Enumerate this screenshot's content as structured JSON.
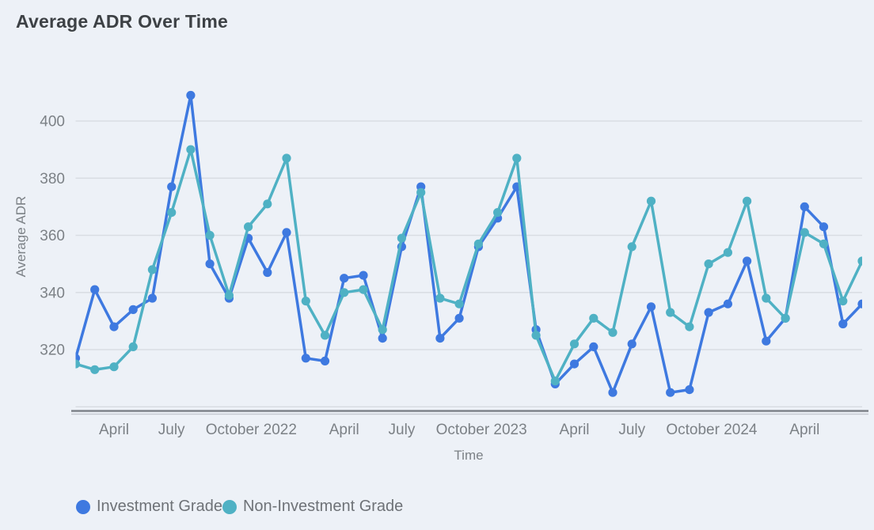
{
  "chart_data": {
    "type": "line",
    "title": "Average ADR Over Time",
    "xlabel": "Time",
    "ylabel": "Average ADR",
    "x_months": [
      "Feb 2022",
      "Mar 2022",
      "Apr 2022",
      "May 2022",
      "Jun 2022",
      "Jul 2022",
      "Aug 2022",
      "Sep 2022",
      "Oct 2022",
      "Nov 2022",
      "Dec 2022",
      "Jan 2023",
      "Feb 2023",
      "Mar 2023",
      "Apr 2023",
      "May 2023",
      "Jun 2023",
      "Jul 2023",
      "Aug 2023",
      "Sep 2023",
      "Oct 2023",
      "Nov 2023",
      "Dec 2023",
      "Jan 2024",
      "Feb 2024",
      "Mar 2024",
      "Apr 2024",
      "May 2024",
      "Jun 2024",
      "Jul 2024",
      "Aug 2024",
      "Sep 2024",
      "Oct 2024",
      "Nov 2024",
      "Dec 2024",
      "Jan 2025",
      "Feb 2025",
      "Mar 2025",
      "Apr 2025",
      "May 2025",
      "Jun 2025",
      "Jul 2025"
    ],
    "x_ticks": [
      {
        "label": "April",
        "index": 2
      },
      {
        "label": "July",
        "index": 5
      },
      {
        "label": "October 2022",
        "index": 8
      },
      {
        "label": "April",
        "index": 14
      },
      {
        "label": "July",
        "index": 17
      },
      {
        "label": "October 2023",
        "index": 20
      },
      {
        "label": "April",
        "index": 26
      },
      {
        "label": "July",
        "index": 29
      },
      {
        "label": "October 2024",
        "index": 32
      },
      {
        "label": "April",
        "index": 38
      }
    ],
    "y_ticks": [
      320,
      340,
      360,
      380,
      400
    ],
    "y_gridlines": [
      300,
      320,
      340,
      360,
      380,
      400
    ],
    "ylim": [
      297,
      413
    ],
    "grid": true,
    "legend_position": "bottom",
    "series": [
      {
        "name": "Investment Grade",
        "color": "#3e79e0",
        "values": [
          317,
          341,
          328,
          334,
          338,
          377,
          409,
          350,
          338,
          359,
          347,
          361,
          317,
          316,
          345,
          346,
          324,
          356,
          377,
          324,
          331,
          356,
          366,
          377,
          327,
          308,
          315,
          321,
          305,
          322,
          335,
          305,
          306,
          333,
          336,
          351,
          323,
          331,
          370,
          363,
          329,
          336
        ]
      },
      {
        "name": "Non-Investment Grade",
        "color": "#4fb1c4",
        "values": [
          315,
          313,
          314,
          321,
          348,
          368,
          390,
          360,
          339,
          363,
          371,
          387,
          337,
          325,
          340,
          341,
          327,
          359,
          375,
          338,
          336,
          357,
          368,
          387,
          325,
          309,
          322,
          331,
          326,
          356,
          372,
          333,
          328,
          350,
          354,
          372,
          338,
          331,
          361,
          357,
          337,
          351
        ]
      }
    ],
    "colors": {
      "background": "#edf1f7",
      "gridline": "#d9dde3",
      "axis_line": "#7e838a",
      "axis_line_secondary": "#c6cad1",
      "tick_text": "#7c8186",
      "title_text": "#3d4145",
      "legend_text": "#6e7277"
    }
  }
}
